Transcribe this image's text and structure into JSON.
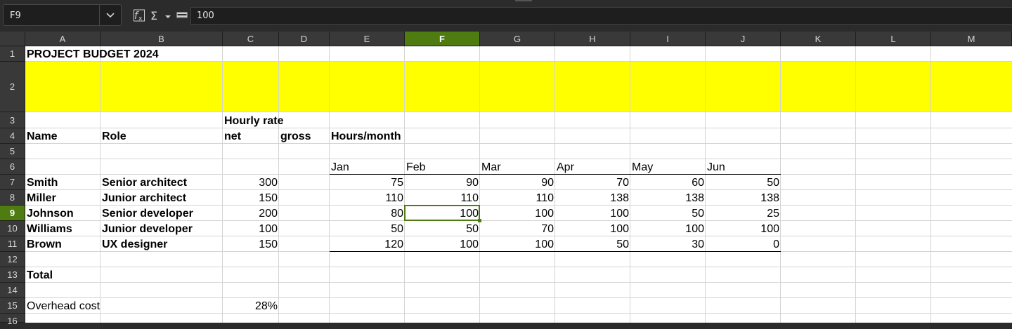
{
  "formula_bar": {
    "name_box": "F9",
    "formula": "100",
    "icons": [
      "chevron-down-icon",
      "function-wizard-icon",
      "sigma-icon",
      "formula-equals-icon"
    ]
  },
  "selection": {
    "cell": "F9",
    "column": "F",
    "row": "9"
  },
  "columns": [
    "A",
    "B",
    "C",
    "D",
    "E",
    "F",
    "G",
    "H",
    "I",
    "J",
    "K",
    "L",
    "M"
  ],
  "rows": [
    "1",
    "2",
    "3",
    "4",
    "5",
    "6",
    "7",
    "8",
    "9",
    "10",
    "11",
    "12",
    "13",
    "14",
    "15",
    "16"
  ],
  "colors": {
    "selection": "#4e7c10",
    "highlight_row": "#ffff00"
  },
  "sheet": {
    "title": "PROJECT BUDGET 2024",
    "hourly_rate": "Hourly rate",
    "headers": {
      "name": "Name",
      "role": "Role",
      "net": "net",
      "gross": "gross",
      "hours": "Hours/month"
    },
    "months": [
      "Jan",
      "Feb",
      "Mar",
      "Apr",
      "May",
      "Jun"
    ],
    "people": [
      {
        "name": "Smith",
        "role": "Senior architect",
        "rate": "300",
        "hours": [
          "75",
          "90",
          "90",
          "70",
          "60",
          "50"
        ]
      },
      {
        "name": "Miller",
        "role": "Junior architect",
        "rate": "150",
        "hours": [
          "110",
          "110",
          "110",
          "138",
          "138",
          "138"
        ]
      },
      {
        "name": "Johnson",
        "role": "Senior developer",
        "rate": "200",
        "hours": [
          "80",
          "100",
          "100",
          "100",
          "50",
          "25"
        ]
      },
      {
        "name": "Williams",
        "role": "Junior developer",
        "rate": "100",
        "hours": [
          "50",
          "50",
          "70",
          "100",
          "100",
          "100"
        ]
      },
      {
        "name": "Brown",
        "role": "UX designer",
        "rate": "150",
        "hours": [
          "120",
          "100",
          "100",
          "50",
          "30",
          "0"
        ]
      }
    ],
    "total": "Total",
    "overhead_label": "Overhead cost",
    "overhead_value": "28%"
  }
}
